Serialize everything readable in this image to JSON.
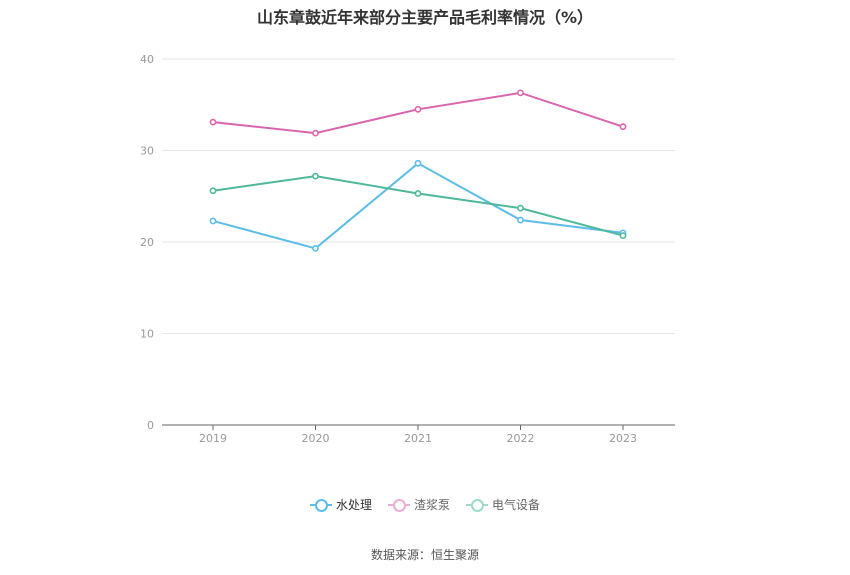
{
  "chart_data": {
    "type": "line",
    "title": "山东章鼓近年来部分主要产品毛利率情况（%）",
    "categories": [
      "2019",
      "2020",
      "2021",
      "2022",
      "2023"
    ],
    "ylim": [
      0,
      40
    ],
    "yticks": [
      0,
      10,
      20,
      30,
      40
    ],
    "grid": true,
    "legend_position": "bottom-center",
    "series": [
      {
        "name": "水处理",
        "color": "#5bbde8",
        "values": [
          22.3,
          19.3,
          28.6,
          22.4,
          21.0
        ]
      },
      {
        "name": "渣浆泵",
        "color": "#d966ac",
        "values": [
          33.1,
          31.9,
          34.5,
          36.3,
          32.6
        ]
      },
      {
        "name": "电气设备",
        "color": "#4db89b",
        "values": [
          25.6,
          27.2,
          25.3,
          23.7,
          20.7
        ]
      }
    ]
  },
  "source": "数据来源：恒生聚源"
}
